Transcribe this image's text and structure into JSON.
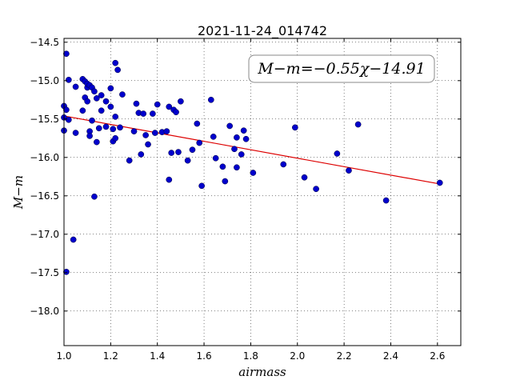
{
  "chart_data": {
    "type": "scatter",
    "title": "2021-11-24_014742",
    "xlabel": "airmass",
    "ylabel": "M−m",
    "xlim": [
      1.0,
      2.7
    ],
    "ylim": [
      -18.45,
      -14.45
    ],
    "y_inverted": true,
    "grid": true,
    "xticks": [
      "1.0",
      "1.2",
      "1.4",
      "1.6",
      "1.8",
      "2.0",
      "2.2",
      "2.4",
      "2.6"
    ],
    "xtick_values": [
      1.0,
      1.2,
      1.4,
      1.6,
      1.8,
      2.0,
      2.2,
      2.4,
      2.6
    ],
    "yticks": [
      "−14.5",
      "−15.0",
      "−15.5",
      "−16.0",
      "−16.5",
      "−17.0",
      "−17.5",
      "−18.0"
    ],
    "ytick_values": [
      -14.5,
      -15.0,
      -15.5,
      -16.0,
      -16.5,
      -17.0,
      -17.5,
      -18.0
    ],
    "annotation": "M−m=−0.55χ−14.91",
    "fit": {
      "slope": -0.55,
      "intercept": -14.91,
      "x_range": [
        1.0,
        2.61
      ],
      "color": "#dd0000"
    },
    "point_color": "#0000cc",
    "points": [
      [
        1.0,
        -15.33
      ],
      [
        1.0,
        -15.48
      ],
      [
        1.0,
        -15.65
      ],
      [
        1.01,
        -17.49
      ],
      [
        1.01,
        -15.38
      ],
      [
        1.01,
        -14.65
      ],
      [
        1.02,
        -14.99
      ],
      [
        1.02,
        -15.51
      ],
      [
        1.04,
        -17.07
      ],
      [
        1.05,
        -15.68
      ],
      [
        1.05,
        -15.08
      ],
      [
        1.08,
        -14.98
      ],
      [
        1.08,
        -15.39
      ],
      [
        1.09,
        -15.01
      ],
      [
        1.09,
        -15.22
      ],
      [
        1.1,
        -15.27
      ],
      [
        1.1,
        -15.09
      ],
      [
        1.1,
        -15.04
      ],
      [
        1.11,
        -15.06
      ],
      [
        1.11,
        -15.66
      ],
      [
        1.11,
        -15.72
      ],
      [
        1.12,
        -15.09
      ],
      [
        1.12,
        -15.52
      ],
      [
        1.13,
        -15.14
      ],
      [
        1.13,
        -16.51
      ],
      [
        1.14,
        -15.23
      ],
      [
        1.14,
        -15.8
      ],
      [
        1.15,
        -15.62
      ],
      [
        1.16,
        -15.19
      ],
      [
        1.16,
        -15.39
      ],
      [
        1.18,
        -15.27
      ],
      [
        1.18,
        -15.6
      ],
      [
        1.2,
        -15.1
      ],
      [
        1.2,
        -15.34
      ],
      [
        1.21,
        -15.79
      ],
      [
        1.21,
        -15.63
      ],
      [
        1.22,
        -15.75
      ],
      [
        1.22,
        -15.47
      ],
      [
        1.22,
        -14.77
      ],
      [
        1.23,
        -14.86
      ],
      [
        1.24,
        -15.61
      ],
      [
        1.25,
        -15.18
      ],
      [
        1.28,
        -16.04
      ],
      [
        1.3,
        -15.66
      ],
      [
        1.31,
        -15.3
      ],
      [
        1.32,
        -15.42
      ],
      [
        1.33,
        -15.96
      ],
      [
        1.34,
        -15.43
      ],
      [
        1.35,
        -15.71
      ],
      [
        1.36,
        -15.83
      ],
      [
        1.38,
        -15.43
      ],
      [
        1.39,
        -15.68
      ],
      [
        1.4,
        -15.31
      ],
      [
        1.42,
        -15.67
      ],
      [
        1.44,
        -15.66
      ],
      [
        1.45,
        -16.29
      ],
      [
        1.45,
        -15.34
      ],
      [
        1.46,
        -15.94
      ],
      [
        1.47,
        -15.38
      ],
      [
        1.48,
        -15.41
      ],
      [
        1.49,
        -15.93
      ],
      [
        1.5,
        -15.27
      ],
      [
        1.53,
        -16.04
      ],
      [
        1.55,
        -15.9
      ],
      [
        1.57,
        -15.56
      ],
      [
        1.58,
        -15.81
      ],
      [
        1.59,
        -16.37
      ],
      [
        1.63,
        -15.25
      ],
      [
        1.64,
        -15.73
      ],
      [
        1.65,
        -16.01
      ],
      [
        1.68,
        -16.12
      ],
      [
        1.69,
        -16.31
      ],
      [
        1.71,
        -15.59
      ],
      [
        1.73,
        -15.89
      ],
      [
        1.74,
        -15.74
      ],
      [
        1.74,
        -16.13
      ],
      [
        1.76,
        -15.96
      ],
      [
        1.77,
        -15.65
      ],
      [
        1.78,
        -15.76
      ],
      [
        1.81,
        -16.2
      ],
      [
        1.94,
        -16.09
      ],
      [
        1.99,
        -15.61
      ],
      [
        2.03,
        -16.26
      ],
      [
        2.08,
        -16.41
      ],
      [
        2.17,
        -15.95
      ],
      [
        2.22,
        -16.17
      ],
      [
        2.26,
        -15.57
      ],
      [
        2.38,
        -16.56
      ],
      [
        2.61,
        -16.33
      ]
    ]
  }
}
